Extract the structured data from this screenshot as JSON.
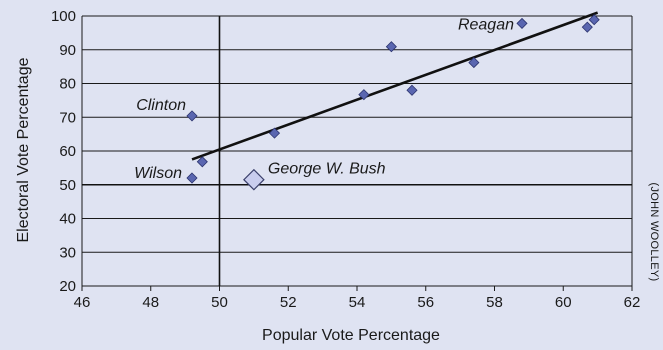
{
  "chart_data": {
    "type": "scatter",
    "title": "",
    "xlabel": "Popular Vote Percentage",
    "ylabel": "Electoral Vote Percentage",
    "xlim": [
      46,
      62
    ],
    "ylim": [
      20,
      100
    ],
    "x_ticks": [
      "46",
      "48",
      "50",
      "52",
      "54",
      "56",
      "58",
      "60",
      "62"
    ],
    "y_ticks": [
      "20",
      "30",
      "40",
      "50",
      "60",
      "70",
      "80",
      "90",
      "100"
    ],
    "grid": "horizontal",
    "reference_lines": {
      "x": 50,
      "y": 50
    },
    "points": [
      {
        "x": 49.2,
        "y": 70.4,
        "label": "Clinton"
      },
      {
        "x": 49.2,
        "y": 52.0,
        "label": "Wilson"
      },
      {
        "x": 49.5,
        "y": 56.8,
        "label": ""
      },
      {
        "x": 51.6,
        "y": 65.3,
        "label": ""
      },
      {
        "x": 54.2,
        "y": 76.7,
        "label": ""
      },
      {
        "x": 55.0,
        "y": 90.9,
        "label": ""
      },
      {
        "x": 55.6,
        "y": 78.0,
        "label": ""
      },
      {
        "x": 57.4,
        "y": 86.2,
        "label": ""
      },
      {
        "x": 58.8,
        "y": 97.8,
        "label": "Reagan"
      },
      {
        "x": 60.7,
        "y": 96.7,
        "label": ""
      },
      {
        "x": 60.9,
        "y": 98.9,
        "label": ""
      }
    ],
    "highlight_point": {
      "x": 51.0,
      "y": 51.5,
      "label": "George W. Bush"
    },
    "trendline": {
      "x": [
        49.2,
        61.0
      ],
      "y": [
        57.5,
        101.0
      ]
    },
    "credit": "(JOHN WOOLLEY)",
    "colors": {
      "marker": "#5a66b0",
      "marker_edge": "#2c346e",
      "highlight": "#c9cdee",
      "highlight_edge": "#3a3f6a",
      "trendline": "#111111",
      "background": "#dfe3f2"
    }
  }
}
